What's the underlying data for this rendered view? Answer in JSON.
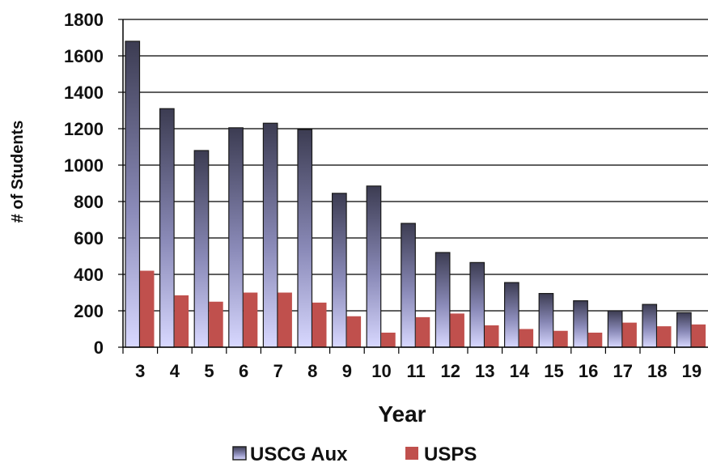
{
  "chart_data": {
    "type": "bar",
    "title": "",
    "xlabel": "Year",
    "ylabel": "# of Students",
    "ylim": [
      0,
      1800
    ],
    "yticks": [
      0,
      200,
      400,
      600,
      800,
      1000,
      1200,
      1400,
      1600,
      1800
    ],
    "grid": true,
    "legend_position": "bottom",
    "categories": [
      "3",
      "4",
      "5",
      "6",
      "7",
      "8",
      "9",
      "10",
      "11",
      "12",
      "13",
      "14",
      "15",
      "16",
      "17",
      "18",
      "19"
    ],
    "series": [
      {
        "name": "USCG Aux",
        "color": "#4a4a6a",
        "values": [
          1680,
          1310,
          1080,
          1205,
          1230,
          1195,
          845,
          885,
          680,
          520,
          465,
          355,
          295,
          255,
          200,
          235,
          190
        ]
      },
      {
        "name": "USPS",
        "color": "#c0504d",
        "values": [
          420,
          285,
          250,
          300,
          300,
          245,
          170,
          80,
          165,
          185,
          120,
          100,
          90,
          80,
          135,
          115,
          125
        ]
      }
    ]
  }
}
